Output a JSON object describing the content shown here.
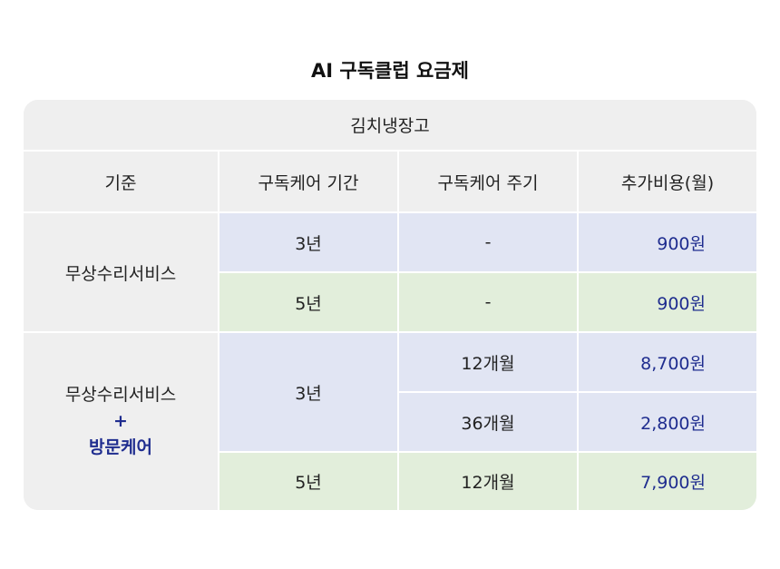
{
  "title": "AI 구독클럽 요금제",
  "colors": {
    "header_bg": "#efefef",
    "blue_row": "#e1e5f3",
    "green_row": "#e2eedb",
    "accent": "#1f2d8f"
  },
  "table": {
    "product": "김치냉장고",
    "headers": [
      "기준",
      "구독케어 기간",
      "구독케어 주기",
      "추가비용(월)"
    ],
    "group1": {
      "label": "무상수리서비스",
      "rows": [
        {
          "period": "3년",
          "cycle": "-",
          "price": "900원"
        },
        {
          "period": "5년",
          "cycle": "-",
          "price": "900원"
        }
      ]
    },
    "group2": {
      "label_line1": "무상수리서비스",
      "label_plus": "+",
      "label_line3": "방문케어",
      "period_3": "3년",
      "rows": [
        {
          "cycle": "12개월",
          "price": "8,700원"
        },
        {
          "cycle": "36개월",
          "price": "2,800원"
        },
        {
          "period": "5년",
          "cycle": "12개월",
          "price": "7,900원"
        }
      ]
    }
  }
}
